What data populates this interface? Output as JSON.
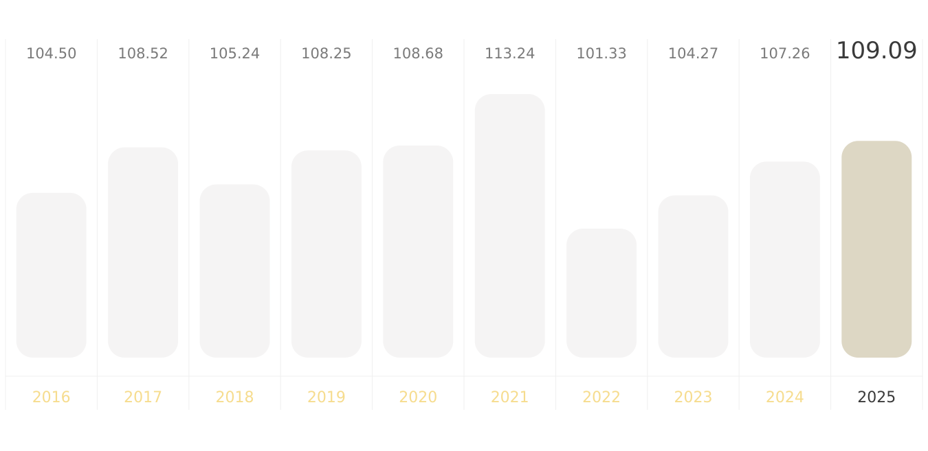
{
  "chart_data": {
    "type": "bar",
    "categories": [
      "2016",
      "2017",
      "2018",
      "2019",
      "2020",
      "2021",
      "2022",
      "2023",
      "2024",
      "2025"
    ],
    "values": [
      104.5,
      108.52,
      105.24,
      108.25,
      108.68,
      113.24,
      101.33,
      104.27,
      107.26,
      109.09
    ],
    "value_labels": [
      "104.50",
      "108.52",
      "105.24",
      "108.25",
      "108.68",
      "113.24",
      "101.33",
      "104.27",
      "107.26",
      "109.09"
    ],
    "highlighted_category": "2025",
    "title": "",
    "xlabel": "",
    "ylabel": "",
    "grid": false,
    "colors": {
      "bar": "#f5f4f4",
      "bar_highlight": "#ddd7c4",
      "year_label": "#f6dc8e",
      "year_label_highlight": "#3a3a3a",
      "value_label": "#7a7a7a",
      "value_label_highlight": "#3a3a3a",
      "divider": "#efefef"
    }
  }
}
